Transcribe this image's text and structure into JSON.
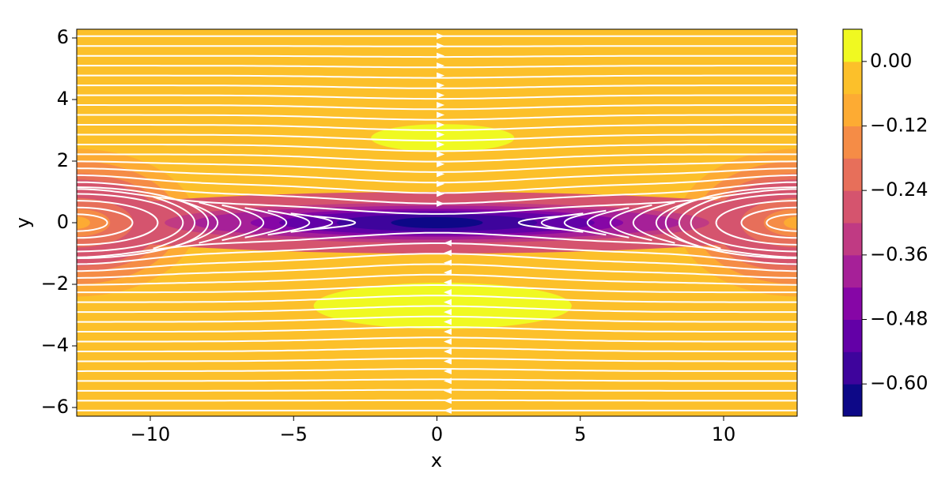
{
  "chart_data": {
    "type": "contour",
    "xlabel": "x",
    "ylabel": "y",
    "xlim": [
      -12.566,
      12.566
    ],
    "ylim": [
      -6.283,
      6.283
    ],
    "xticks": [
      {
        "value": -10,
        "label": "−10"
      },
      {
        "value": -5,
        "label": "−5"
      },
      0,
      5,
      10
    ],
    "yticks": [
      {
        "value": -6,
        "label": "−6"
      },
      {
        "value": -4,
        "label": "−4"
      },
      {
        "value": -2,
        "label": "−2"
      },
      0,
      2,
      4,
      6
    ],
    "levels": [
      -0.66,
      -0.6,
      -0.54,
      -0.48,
      -0.42,
      -0.36,
      -0.3,
      -0.24,
      -0.18,
      -0.12,
      -0.06,
      0,
      0.06
    ],
    "colors": [
      "#0d0887",
      "#3e049c",
      "#6300a7",
      "#8606a6",
      "#a62098",
      "#c03a83",
      "#d5546e",
      "#e76f5a",
      "#f58c46",
      "#fdab33",
      "#fcc02a",
      "#f0f921"
    ],
    "colorbar_ticks": [
      {
        "value": -0.6,
        "label": "−0.60"
      },
      {
        "value": -0.48,
        "label": "−0.48"
      },
      {
        "value": -0.36,
        "label": "−0.36"
      },
      {
        "value": -0.24,
        "label": "−0.24"
      },
      {
        "value": -0.12,
        "label": "−0.12"
      },
      {
        "value": 0,
        "label": "0.00"
      }
    ],
    "streamline_color": "#ffffff"
  }
}
